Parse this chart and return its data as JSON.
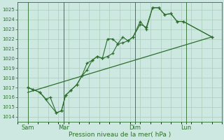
{
  "xlabel": "Pression niveau de la mer( hPa )",
  "bg_color": "#cce8e0",
  "grid_color": "#aaccbb",
  "line_color": "#2d6e2d",
  "tick_color": "#2d6e2d",
  "spine_color": "#2d6e2d",
  "ylim": [
    1013.5,
    1025.8
  ],
  "yticks": [
    1014,
    1015,
    1016,
    1017,
    1018,
    1019,
    1020,
    1021,
    1022,
    1023,
    1024,
    1025
  ],
  "xlim": [
    0,
    20
  ],
  "day_labels": [
    "Sam",
    "Mar",
    "Dim",
    "Lun"
  ],
  "day_positions": [
    1.0,
    4.5,
    11.5,
    16.5
  ],
  "series1_x": [
    1.0,
    1.5,
    2.2,
    2.8,
    3.2,
    3.8,
    4.3,
    4.7,
    5.2,
    5.8,
    6.3,
    6.8,
    7.3,
    7.8,
    8.3,
    8.8,
    9.3,
    9.8,
    10.3,
    10.8,
    11.3,
    12.0,
    12.6,
    13.2,
    13.8,
    14.4,
    15.0,
    15.6,
    16.2,
    19.0
  ],
  "series1_y": [
    1017.0,
    1016.8,
    1016.5,
    1015.8,
    1016.0,
    1014.4,
    1014.6,
    1016.2,
    1016.7,
    1017.3,
    1018.2,
    1019.5,
    1019.8,
    1020.2,
    1020.0,
    1022.0,
    1022.0,
    1021.5,
    1022.2,
    1021.8,
    1022.2,
    1023.8,
    1023.0,
    1025.2,
    1025.2,
    1024.5,
    1024.6,
    1023.8,
    1023.8,
    1022.2
  ],
  "series2_x": [
    1.0,
    19.0
  ],
  "series2_y": [
    1016.5,
    1022.2
  ],
  "series3_x": [
    1.0,
    1.5,
    2.2,
    3.8,
    4.3,
    4.7,
    5.2,
    5.8,
    6.3,
    6.8,
    7.3,
    7.8,
    8.3,
    8.8,
    9.3,
    9.8,
    10.3,
    10.8,
    11.3,
    12.0,
    12.6,
    13.2,
    13.8,
    14.4,
    15.0,
    15.6,
    16.2,
    19.0
  ],
  "series3_y": [
    1017.0,
    1016.8,
    1016.5,
    1014.4,
    1014.6,
    1016.2,
    1016.7,
    1017.3,
    1018.2,
    1018.8,
    1019.8,
    1020.2,
    1020.0,
    1020.2,
    1020.5,
    1021.5,
    1021.6,
    1021.8,
    1022.2,
    1023.5,
    1023.2,
    1025.2,
    1025.2,
    1024.5,
    1024.6,
    1023.8,
    1023.8,
    1022.2
  ]
}
